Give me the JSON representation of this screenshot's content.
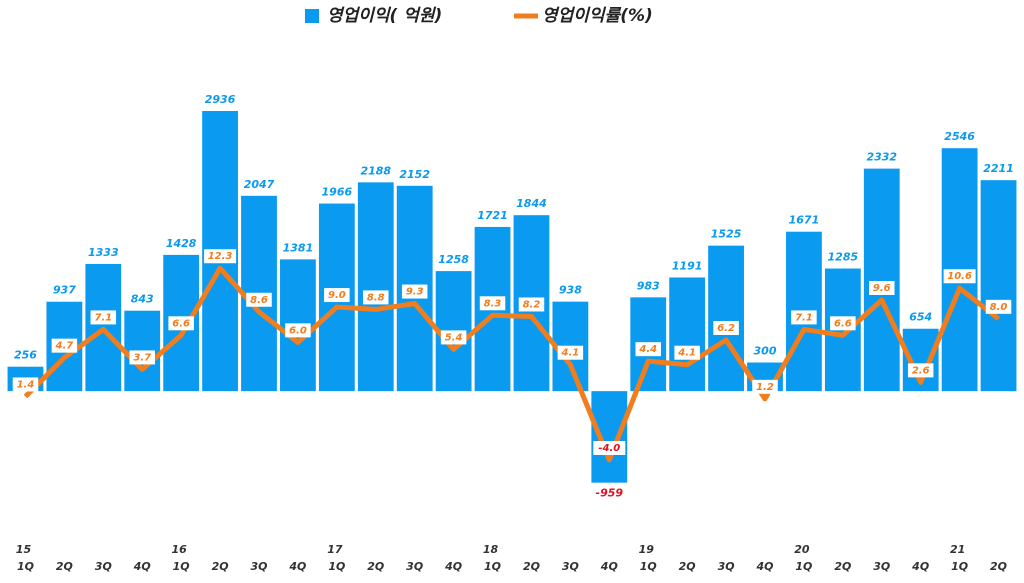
{
  "chart_data": {
    "type": "bar-line",
    "categories": [
      "1Q",
      "2Q",
      "3Q",
      "4Q",
      "1Q",
      "2Q",
      "3Q",
      "4Q",
      "1Q",
      "2Q",
      "3Q",
      "4Q",
      "1Q",
      "2Q",
      "3Q",
      "4Q",
      "1Q",
      "2Q",
      "3Q",
      "4Q",
      "1Q",
      "2Q",
      "3Q",
      "4Q",
      "1Q",
      "2Q"
    ],
    "year_labels": [
      "15",
      null,
      null,
      null,
      "16",
      null,
      null,
      null,
      "17",
      null,
      null,
      null,
      "18",
      null,
      null,
      null,
      "19",
      null,
      null,
      null,
      "20",
      null,
      null,
      null,
      "21",
      null
    ],
    "ylim": [
      -1560,
      3680
    ],
    "y2lim": [
      -10.8,
      31.7
    ],
    "legend": "top",
    "series": [
      {
        "name": "영업이익( 억원)",
        "color": "#0a9af0",
        "negative_label_color": "#e0101e",
        "values": [
          256,
          937,
          1333,
          843,
          1428,
          2936,
          2047,
          1381,
          1966,
          2188,
          2152,
          1258,
          1721,
          1844,
          938,
          -959,
          983,
          1191,
          1525,
          300,
          1671,
          1285,
          2332,
          654,
          2546,
          2211
        ]
      },
      {
        "name": "영업이익률(%)",
        "color": "#f07d1e",
        "axis": "y2",
        "negative_label_color": "#e0101e",
        "values": [
          1.4,
          4.7,
          7.1,
          3.7,
          6.6,
          12.3,
          8.6,
          6.0,
          9.0,
          8.8,
          9.3,
          5.4,
          8.3,
          8.2,
          4.1,
          -4.0,
          4.4,
          4.1,
          6.2,
          1.2,
          7.1,
          6.6,
          9.6,
          2.6,
          10.6,
          8.0
        ],
        "value_labels": [
          "1.4",
          "4.7",
          "7.1",
          "3.7",
          "6.6",
          "12.3",
          "8.6",
          "6.0",
          "9.0",
          "8.8",
          "9.3",
          "5.4",
          "8.3",
          "8.2",
          "4.1",
          "-4.0",
          "4.4",
          "4.1",
          "6.2",
          "1.2",
          "7.1",
          "6.6",
          "9.6",
          "2.6",
          "10.6",
          "8.0"
        ]
      }
    ]
  }
}
